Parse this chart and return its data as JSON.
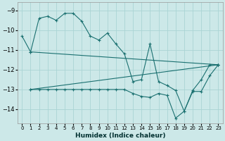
{
  "xlabel": "Humidex (Indice chaleur)",
  "xlim": [
    -0.5,
    23.5
  ],
  "ylim": [
    -14.7,
    -8.6
  ],
  "yticks": [
    -9,
    -10,
    -11,
    -12,
    -13,
    -14
  ],
  "xticks": [
    0,
    1,
    2,
    3,
    4,
    5,
    6,
    7,
    8,
    9,
    10,
    11,
    12,
    13,
    14,
    15,
    16,
    17,
    18,
    19,
    20,
    21,
    22,
    23
  ],
  "bg_color": "#cce8e8",
  "line_color": "#1a7070",
  "grid_color": "#aad4d4",
  "series": [
    {
      "x": [
        0,
        1,
        2,
        3,
        4,
        5,
        6,
        7,
        8,
        9,
        10,
        11,
        12,
        13,
        14,
        15,
        16,
        17,
        18,
        19,
        20,
        21,
        22,
        23
      ],
      "y": [
        -10.3,
        -11.1,
        -9.4,
        -9.3,
        -9.5,
        -9.15,
        -9.15,
        -9.55,
        -10.3,
        -10.5,
        -10.15,
        -10.7,
        -11.2,
        -12.6,
        -12.5,
        -10.7,
        -12.6,
        -12.8,
        -13.05,
        -14.1,
        -13.05,
        -12.5,
        -11.75,
        -11.75
      ]
    },
    {
      "x": [
        1,
        23
      ],
      "y": [
        -11.1,
        -11.75
      ]
    },
    {
      "x": [
        1,
        23
      ],
      "y": [
        -13.0,
        -11.75
      ]
    },
    {
      "x": [
        1,
        2,
        3,
        4,
        5,
        6,
        7,
        8,
        9,
        10,
        11,
        12,
        13,
        14,
        15,
        16,
        17,
        18,
        19,
        20,
        21,
        22,
        23
      ],
      "y": [
        -13.0,
        -13.0,
        -13.0,
        -13.0,
        -13.0,
        -13.0,
        -13.0,
        -13.0,
        -13.0,
        -13.0,
        -13.0,
        -13.0,
        -13.2,
        -13.35,
        -13.4,
        -13.2,
        -13.3,
        -14.45,
        -14.1,
        -13.1,
        -13.1,
        -12.3,
        -11.75
      ]
    }
  ]
}
